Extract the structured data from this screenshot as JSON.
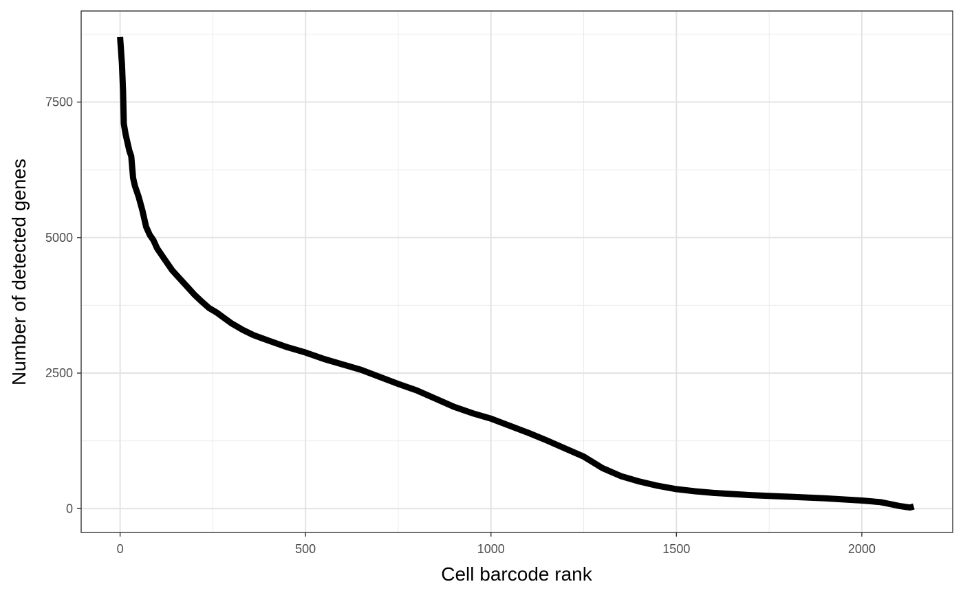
{
  "chart_data": {
    "type": "line",
    "title": "",
    "xlabel": "Cell barcode rank",
    "ylabel": "Number of detected genes",
    "xlim": [
      -105,
      2245
    ],
    "ylim": [
      -440,
      9180
    ],
    "x_ticks": [
      0,
      500,
      1000,
      1500,
      2000
    ],
    "x_tick_labels": [
      "0",
      "500",
      "1000",
      "1500",
      "2000"
    ],
    "y_ticks": [
      0,
      2500,
      5000,
      7500
    ],
    "y_tick_labels": [
      "0",
      "2500",
      "5000",
      "7500"
    ],
    "x_minor": [
      250,
      750,
      1250,
      1750
    ],
    "y_minor": [
      1250,
      3750,
      6250,
      8750
    ],
    "grid": true,
    "legend": "none",
    "theme": "bw",
    "line_color": "#000000",
    "series": [
      {
        "x": [
          0,
          1,
          2,
          3,
          5,
          8,
          10,
          15,
          20,
          25,
          30,
          35,
          40,
          50,
          60,
          70,
          80,
          90,
          100,
          120,
          140,
          160,
          180,
          200,
          220,
          240,
          260,
          280,
          300,
          330,
          360,
          400,
          450,
          500,
          550,
          600,
          650,
          700,
          750,
          800,
          850,
          900,
          950,
          1000,
          1050,
          1100,
          1150,
          1200,
          1250,
          1300,
          1350,
          1400,
          1450,
          1500,
          1550,
          1600,
          1700,
          1800,
          1900,
          2000,
          2050,
          2080,
          2100,
          2120,
          2130,
          2135,
          2140
        ],
        "y": [
          8700,
          8600,
          8500,
          8400,
          8200,
          7700,
          7100,
          6900,
          6750,
          6600,
          6500,
          6100,
          5950,
          5750,
          5500,
          5200,
          5050,
          4950,
          4800,
          4600,
          4400,
          4250,
          4100,
          3950,
          3820,
          3700,
          3620,
          3520,
          3420,
          3300,
          3200,
          3100,
          2980,
          2880,
          2760,
          2660,
          2560,
          2430,
          2300,
          2180,
          2030,
          1880,
          1760,
          1660,
          1530,
          1400,
          1260,
          1110,
          960,
          750,
          600,
          500,
          420,
          360,
          320,
          290,
          250,
          220,
          190,
          150,
          120,
          80,
          50,
          30,
          20,
          30,
          40
        ]
      }
    ]
  }
}
